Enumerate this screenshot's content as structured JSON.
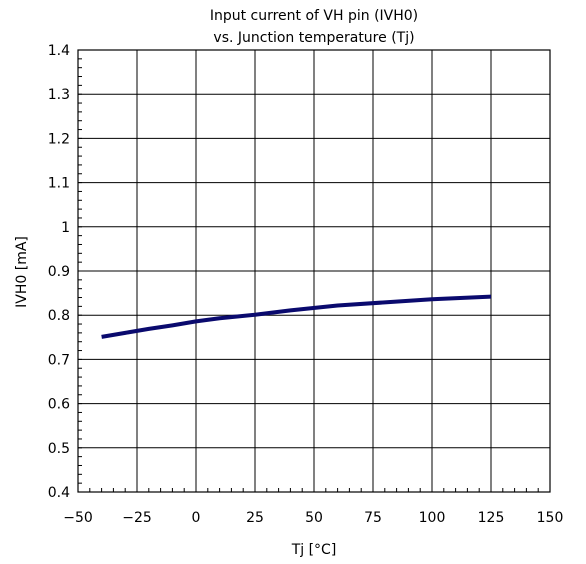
{
  "chart_data": {
    "type": "line",
    "title_line1": "Input current of VH pin (IVH0)",
    "title_line2": "vs. Junction temperature (Tj)",
    "xlabel": "Tj [°C]",
    "ylabel": "IVH0 [mA]",
    "xlim": [
      -50,
      150
    ],
    "ylim": [
      0.4,
      1.4
    ],
    "x_ticks": [
      -50,
      -25,
      0,
      25,
      50,
      75,
      100,
      125,
      150
    ],
    "x_tick_labels": [
      "−50",
      "−25",
      "0",
      "25",
      "50",
      "75",
      "100",
      "125",
      "150"
    ],
    "y_ticks": [
      0.4,
      0.5,
      0.6,
      0.7,
      0.8,
      0.9,
      1.0,
      1.1,
      1.2,
      1.3,
      1.4
    ],
    "y_tick_labels": [
      "0.4",
      "0.5",
      "0.6",
      "0.7",
      "0.8",
      "0.9",
      "1",
      "1.1",
      "1.2",
      "1.3",
      "1.4"
    ],
    "grid": true,
    "line_color": "#0a0a6e",
    "series": [
      {
        "x": [
          -40,
          -30,
          -20,
          -10,
          0,
          10,
          25,
          40,
          60,
          80,
          100,
          125
        ],
        "values": [
          0.751,
          0.76,
          0.769,
          0.777,
          0.786,
          0.793,
          0.801,
          0.811,
          0.822,
          0.829,
          0.836,
          0.842
        ]
      }
    ]
  }
}
